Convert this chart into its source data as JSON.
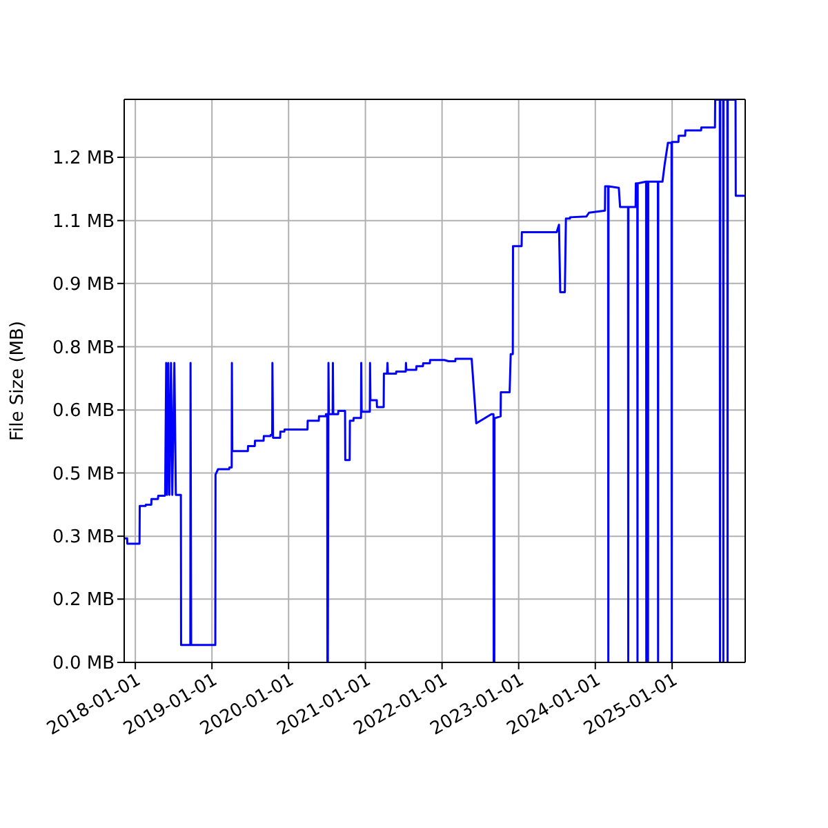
{
  "chart_data": {
    "type": "line",
    "ylabel": "File Size (MB)",
    "grid": true,
    "legend": false,
    "marker": "none",
    "line_style": "solid",
    "xlim": [
      "2017-11-09",
      "2025-12-15"
    ],
    "ylim": [
      0,
      1.361
    ],
    "xticks": [
      "2018-01-01",
      "2019-01-01",
      "2020-01-01",
      "2021-01-01",
      "2022-01-01",
      "2023-01-01",
      "2024-01-01",
      "2025-01-01"
    ],
    "yticks": [
      {
        "value": 0,
        "label": "0.0 MB"
      },
      {
        "value": 0.153,
        "label": "0.2 MB"
      },
      {
        "value": 0.305,
        "label": "0.3 MB"
      },
      {
        "value": 0.458,
        "label": "0.5 MB"
      },
      {
        "value": 0.61,
        "label": "0.6 MB"
      },
      {
        "value": 0.763,
        "label": "0.8 MB"
      },
      {
        "value": 0.916,
        "label": "0.9 MB"
      },
      {
        "value": 1.068,
        "label": "1.1 MB"
      },
      {
        "value": 1.221,
        "label": "1.2 MB"
      }
    ],
    "series": [
      {
        "color": "#0000ff",
        "x": [
          "2017-11-09",
          "2017-11-23",
          "2017-11-24",
          "2018-01-21",
          "2018-01-22",
          "2018-02-19",
          "2018-02-20",
          "2018-03-18",
          "2018-03-19",
          "2018-04-19",
          "2018-04-20",
          "2018-05-22",
          "2018-05-23",
          "2018-05-28",
          "2018-06-01",
          "2018-06-07",
          "2018-06-12",
          "2018-06-20",
          "2018-06-26",
          "2018-07-06",
          "2018-07-13",
          "2018-08-06",
          "2018-08-07",
          "2018-09-20",
          "2018-09-21",
          "2018-09-24",
          "2019-01-17",
          "2019-01-18",
          "2019-01-30",
          "2019-03-24",
          "2019-03-25",
          "2019-04-05",
          "2019-04-06",
          "2019-04-08",
          "2019-06-21",
          "2019-06-22",
          "2019-07-24",
          "2019-07-25",
          "2019-09-04",
          "2019-09-05",
          "2019-10-07",
          "2019-10-08",
          "2019-10-15",
          "2019-10-16",
          "2019-10-19",
          "2019-11-22",
          "2019-11-23",
          "2019-12-12",
          "2019-12-13",
          "2020-03-31",
          "2020-04-01",
          "2020-05-24",
          "2020-05-25",
          "2020-06-26",
          "2020-06-27",
          "2020-07-03",
          "2020-07-04",
          "2020-07-06",
          "2020-07-09",
          "2020-07-11",
          "2020-07-29",
          "2020-07-30",
          "2020-08-01",
          "2020-08-24",
          "2020-08-25",
          "2020-09-26",
          "2020-09-27",
          "2020-10-18",
          "2020-10-19",
          "2020-11-05",
          "2020-11-06",
          "2020-12-11",
          "2020-12-12",
          "2020-12-14",
          "2021-01-22",
          "2021-01-23",
          "2021-01-25",
          "2021-02-24",
          "2021-02-25",
          "2021-03-29",
          "2021-03-30",
          "2021-04-14",
          "2021-04-16",
          "2021-04-18",
          "2021-05-27",
          "2021-05-28",
          "2021-07-12",
          "2021-07-13",
          "2021-07-15",
          "2021-08-31",
          "2021-09-01",
          "2021-10-02",
          "2021-10-03",
          "2021-11-04",
          "2021-11-05",
          "2022-01-12",
          "2022-02-01",
          "2022-03-05",
          "2022-03-06",
          "2022-05-22",
          "2022-06-13",
          "2022-08-24",
          "2022-09-03",
          "2022-09-04",
          "2022-09-07",
          "2022-09-08",
          "2022-09-14",
          "2022-10-07",
          "2022-10-08",
          "2022-11-19",
          "2022-11-24",
          "2022-12-04",
          "2022-12-05",
          "2023-01-15",
          "2023-01-16",
          "2023-07-01",
          "2023-07-12",
          "2023-07-18",
          "2023-08-09",
          "2023-08-14",
          "2023-09-02",
          "2023-09-03",
          "2023-11-20",
          "2023-12-02",
          "2024-02-16",
          "2024-02-17",
          "2024-03-02",
          "2024-03-03",
          "2024-03-04",
          "2024-04-22",
          "2024-04-28",
          "2024-06-05",
          "2024-06-06",
          "2024-06-07",
          "2024-07-11",
          "2024-07-12",
          "2024-07-19",
          "2024-07-20",
          "2024-07-21",
          "2024-08-30",
          "2024-08-31",
          "2024-09-01",
          "2024-09-07",
          "2024-09-08",
          "2024-09-09",
          "2024-10-25",
          "2024-10-26",
          "2024-10-27",
          "2024-11-16",
          "2024-11-27",
          "2024-12-12",
          "2024-12-29",
          "2024-12-30",
          "2024-12-31",
          "2025-01-31",
          "2025-02-01",
          "2025-03-04",
          "2025-03-05",
          "2025-05-19",
          "2025-05-20",
          "2025-07-24",
          "2025-07-25",
          "2025-08-16",
          "2025-08-17",
          "2025-08-18",
          "2025-09-01",
          "2025-09-02",
          "2025-09-03",
          "2025-09-21",
          "2025-09-22",
          "2025-09-23",
          "2025-10-30",
          "2025-10-31",
          "2025-12-15"
        ],
        "values": [
          0.3,
          0.3,
          0.287,
          0.287,
          0.378,
          0.378,
          0.381,
          0.381,
          0.395,
          0.395,
          0.403,
          0.403,
          0.405,
          0.724,
          0.405,
          0.724,
          0.405,
          0.724,
          0.405,
          0.724,
          0.405,
          0.405,
          0.042,
          0.042,
          0.724,
          0.042,
          0.042,
          0.454,
          0.467,
          0.467,
          0.471,
          0.471,
          0.724,
          0.511,
          0.511,
          0.523,
          0.523,
          0.536,
          0.536,
          0.547,
          0.547,
          0.55,
          0.55,
          0.724,
          0.543,
          0.543,
          0.558,
          0.558,
          0.563,
          0.563,
          0.584,
          0.584,
          0.595,
          0.595,
          0.6,
          0.6,
          0,
          0,
          0.724,
          0.6,
          0.6,
          0.724,
          0.6,
          0.6,
          0.608,
          0.608,
          0.489,
          0.489,
          0.584,
          0.584,
          0.591,
          0.591,
          0.724,
          0.606,
          0.606,
          0.724,
          0.634,
          0.634,
          0.617,
          0.617,
          0.698,
          0.698,
          0.724,
          0.698,
          0.698,
          0.703,
          0.703,
          0.724,
          0.707,
          0.707,
          0.716,
          0.716,
          0.723,
          0.723,
          0.731,
          0.731,
          0.728,
          0.728,
          0.734,
          0.734,
          0.578,
          0.6,
          0.6,
          0,
          0,
          0.591,
          0.591,
          0.595,
          0.653,
          0.653,
          0.745,
          0.745,
          1.006,
          1.006,
          1.04,
          1.04,
          1.058,
          0.895,
          0.895,
          1.073,
          1.073,
          1.076,
          1.078,
          1.087,
          1.092,
          1.151,
          1.151,
          0,
          1.151,
          1.147,
          1.101,
          1.101,
          0,
          1.101,
          1.101,
          1.158,
          1.158,
          0,
          1.158,
          1.162,
          0,
          1.162,
          1.162,
          0,
          1.162,
          1.162,
          0,
          1.162,
          1.162,
          1.206,
          1.256,
          1.256,
          0,
          1.258,
          1.258,
          1.273,
          1.273,
          1.286,
          1.286,
          1.293,
          1.293,
          1.36,
          1.36,
          0,
          1.36,
          1.36,
          0,
          1.36,
          1.36,
          0,
          1.36,
          1.36,
          1.128,
          1.128
        ]
      }
    ]
  }
}
